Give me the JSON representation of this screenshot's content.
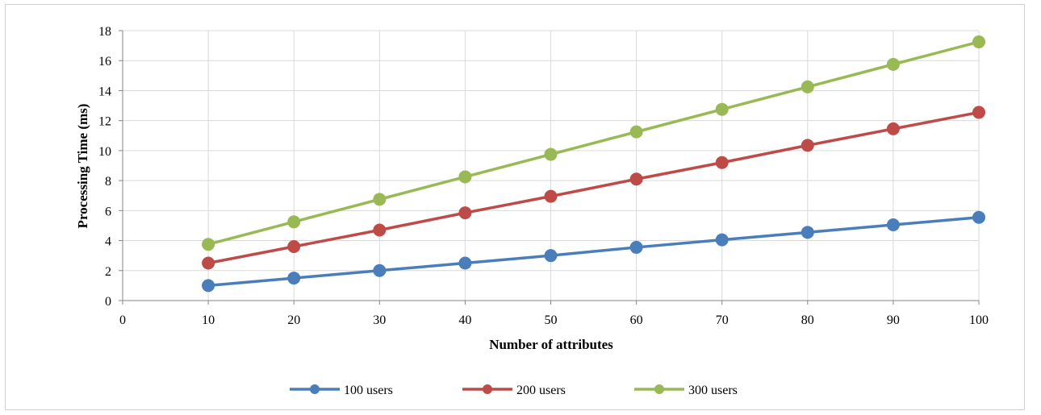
{
  "chart_data": {
    "type": "line",
    "title": "",
    "xlabel": "Number of attributes",
    "ylabel": "Processing Time (ms)",
    "xlim": [
      0,
      100
    ],
    "ylim": [
      0,
      18
    ],
    "x_ticks": [
      0,
      10,
      20,
      30,
      40,
      50,
      60,
      70,
      80,
      90,
      100
    ],
    "y_ticks": [
      0,
      2,
      4,
      6,
      8,
      10,
      12,
      14,
      16,
      18
    ],
    "grid": true,
    "legend_position": "bottom",
    "x": [
      10,
      20,
      30,
      40,
      50,
      60,
      70,
      80,
      90,
      100
    ],
    "series": [
      {
        "name": "100 users",
        "color": "#4a7ebb",
        "values": [
          1.0,
          1.5,
          2.0,
          2.5,
          3.0,
          3.55,
          4.05,
          4.55,
          5.05,
          5.55
        ]
      },
      {
        "name": "200 users",
        "color": "#be4b48",
        "values": [
          2.5,
          3.6,
          4.7,
          5.85,
          6.95,
          8.1,
          9.2,
          10.35,
          11.45,
          12.55
        ]
      },
      {
        "name": "300 users",
        "color": "#98b954",
        "values": [
          3.75,
          5.25,
          6.75,
          8.25,
          9.75,
          11.25,
          12.75,
          14.25,
          15.75,
          17.25
        ]
      }
    ]
  }
}
